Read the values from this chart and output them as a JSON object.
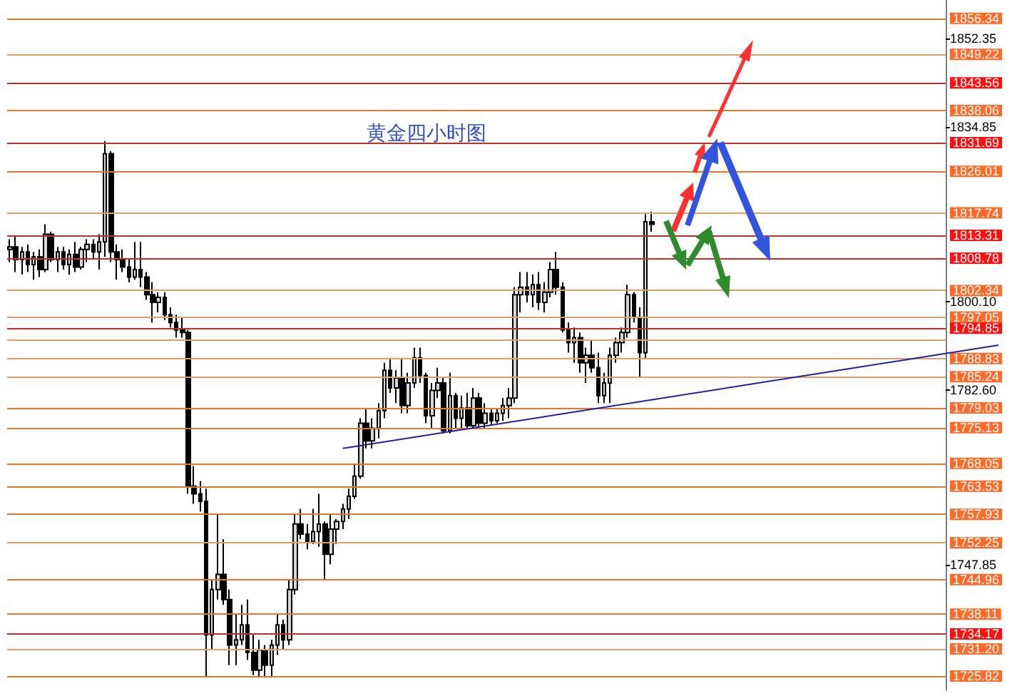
{
  "chart_data": {
    "type": "candlestick",
    "title": "黄金四小时图",
    "categories": [
      null,
      null,
      null,
      null,
      null,
      null,
      null,
      null,
      null,
      null,
      null,
      null,
      null,
      null,
      null,
      null,
      null,
      null,
      null,
      null,
      null,
      null,
      null,
      null,
      null,
      null,
      null,
      null,
      null,
      null,
      null,
      null,
      null,
      null,
      null,
      null,
      null,
      null,
      null,
      null,
      null,
      null,
      null,
      null,
      null,
      null,
      null,
      null,
      null,
      null,
      null,
      null,
      null,
      null,
      null,
      null,
      null,
      null,
      null,
      null,
      null,
      null,
      null,
      null,
      null,
      null,
      null,
      null,
      null,
      null,
      null,
      null,
      null,
      null,
      null,
      null,
      null,
      null,
      null,
      null,
      null,
      null,
      null,
      null,
      null,
      null,
      null,
      null,
      null,
      null,
      null,
      null,
      null,
      null,
      null,
      null,
      null,
      null,
      null,
      null,
      null,
      null,
      null,
      null,
      null,
      null,
      null,
      null,
      null,
      null,
      null,
      null,
      null,
      null,
      null,
      null,
      null,
      null,
      null,
      null,
      null,
      null,
      null,
      null,
      null,
      null,
      null,
      null,
      null,
      null,
      null,
      null,
      null,
      null,
      null,
      null,
      null,
      null,
      null,
      null,
      null,
      null,
      null,
      null,
      null,
      null,
      null,
      null,
      null,
      null,
      null,
      null,
      null,
      null,
      null,
      null,
      null,
      null
    ],
    "ohlc": [
      [
        1810.5,
        1812.5,
        1808,
        1811
      ],
      [
        1811,
        1813,
        1806,
        1808.5
      ],
      [
        1808.5,
        1811,
        1805.5,
        1810
      ],
      [
        1810,
        1811.5,
        1806,
        1807.5
      ],
      [
        1807.5,
        1810,
        1804.5,
        1809
      ],
      [
        1809,
        1810.5,
        1805,
        1806.5
      ],
      [
        1806.5,
        1815.5,
        1806,
        1813.5
      ],
      [
        1813.5,
        1814,
        1808,
        1808.5
      ],
      [
        1808.5,
        1811,
        1806,
        1810
      ],
      [
        1810,
        1811,
        1806.5,
        1807.5
      ],
      [
        1807.5,
        1810.5,
        1805.5,
        1809.5
      ],
      [
        1809.5,
        1812,
        1806,
        1807
      ],
      [
        1807,
        1811,
        1806.5,
        1810.5
      ],
      [
        1810.5,
        1812.5,
        1808,
        1811.5
      ],
      [
        1811.5,
        1812.5,
        1808.5,
        1810
      ],
      [
        1810,
        1813.5,
        1806.5,
        1812
      ],
      [
        1812,
        1832,
        1809,
        1829.5
      ],
      [
        1829.5,
        1830,
        1808,
        1810
      ],
      [
        1810,
        1811.5,
        1804.5,
        1808.5
      ],
      [
        1808.5,
        1810.5,
        1806,
        1807
      ],
      [
        1807,
        1808.5,
        1804,
        1805
      ],
      [
        1805,
        1812,
        1804.5,
        1806.5
      ],
      [
        1806.5,
        1812,
        1803,
        1805
      ],
      [
        1805,
        1806,
        1800.5,
        1801.5
      ],
      [
        1801.5,
        1804,
        1796,
        1800
      ],
      [
        1800,
        1802,
        1798,
        1801
      ],
      [
        1801,
        1802,
        1796.5,
        1797.5
      ],
      [
        1797.5,
        1799,
        1795,
        1796
      ],
      [
        1796,
        1797.5,
        1793,
        1794.5
      ],
      [
        1794.5,
        1797,
        1793,
        1794
      ],
      [
        1794,
        1794.5,
        1762,
        1763.5
      ],
      [
        1763.5,
        1767.5,
        1760,
        1762
      ],
      [
        1762,
        1764.5,
        1758.5,
        1760.5
      ],
      [
        1760.5,
        1763,
        1725.5,
        1734
      ],
      [
        1734,
        1745,
        1731,
        1743
      ],
      [
        1743,
        1758,
        1741,
        1746
      ],
      [
        1746,
        1753,
        1740,
        1741
      ],
      [
        1741,
        1743,
        1728,
        1732
      ],
      [
        1732,
        1738,
        1728,
        1733
      ],
      [
        1733,
        1740,
        1732,
        1736
      ],
      [
        1736,
        1741,
        1729,
        1730.5
      ],
      [
        1730.5,
        1734,
        1726,
        1727
      ],
      [
        1727,
        1733,
        1725.5,
        1731
      ],
      [
        1731,
        1732,
        1725.5,
        1728
      ],
      [
        1728,
        1733,
        1725.5,
        1732
      ],
      [
        1732,
        1738,
        1730,
        1736
      ],
      [
        1736,
        1737,
        1731,
        1733
      ],
      [
        1733,
        1745,
        1732,
        1743
      ],
      [
        1743,
        1758,
        1742,
        1756
      ],
      [
        1756,
        1759,
        1753,
        1754
      ],
      [
        1754,
        1756,
        1751,
        1752.5
      ],
      [
        1752.5,
        1759,
        1752,
        1754.5
      ],
      [
        1754.5,
        1762,
        1751.5,
        1756
      ],
      [
        1756,
        1756.5,
        1745,
        1750
      ],
      [
        1750,
        1758,
        1748,
        1755
      ],
      [
        1755,
        1757,
        1752,
        1756.5
      ],
      [
        1756.5,
        1760,
        1755,
        1759
      ],
      [
        1759,
        1763,
        1757,
        1761.5
      ],
      [
        1761.5,
        1768,
        1761,
        1765.5
      ],
      [
        1765.5,
        1777,
        1765,
        1776
      ],
      [
        1776,
        1779,
        1771,
        1772.5
      ],
      [
        1772.5,
        1777,
        1771,
        1775
      ],
      [
        1775,
        1780,
        1773,
        1778.5
      ],
      [
        1778.5,
        1788,
        1777,
        1786.5
      ],
      [
        1786.5,
        1789,
        1782,
        1783
      ],
      [
        1783,
        1786.5,
        1780,
        1785
      ],
      [
        1785,
        1789,
        1778,
        1779.5
      ],
      [
        1779.5,
        1786,
        1778,
        1784
      ],
      [
        1784,
        1791,
        1783,
        1789
      ],
      [
        1789,
        1791,
        1784,
        1785.5
      ],
      [
        1785.5,
        1786,
        1776,
        1777.5
      ],
      [
        1777.5,
        1784,
        1775,
        1782.5
      ],
      [
        1782.5,
        1787,
        1781,
        1784
      ],
      [
        1784,
        1785,
        1774,
        1774.5
      ],
      [
        1774.5,
        1786,
        1774,
        1781.5
      ],
      [
        1781.5,
        1782,
        1775,
        1777
      ],
      [
        1777,
        1781.5,
        1775,
        1779
      ],
      [
        1779,
        1782,
        1775,
        1775.5
      ],
      [
        1775.5,
        1783,
        1775,
        1781
      ],
      [
        1781,
        1782,
        1775,
        1776
      ],
      [
        1776,
        1780,
        1775,
        1778
      ],
      [
        1778,
        1779,
        1775.5,
        1776.5
      ],
      [
        1776.5,
        1779,
        1776,
        1778
      ],
      [
        1778,
        1781,
        1776.5,
        1779.5
      ],
      [
        1779.5,
        1783,
        1777,
        1781
      ],
      [
        1781,
        1803,
        1780,
        1801.5
      ],
      [
        1801.5,
        1806,
        1798,
        1803
      ],
      [
        1803,
        1806,
        1800,
        1801.5
      ],
      [
        1801.5,
        1805.5,
        1799,
        1803.5
      ],
      [
        1803.5,
        1806,
        1798.5,
        1800
      ],
      [
        1800,
        1804,
        1798,
        1802
      ],
      [
        1802,
        1808,
        1801,
        1806.5
      ],
      [
        1806.5,
        1810,
        1801.5,
        1803
      ],
      [
        1803,
        1804,
        1794,
        1794.5
      ],
      [
        1794.5,
        1796,
        1790,
        1792
      ],
      [
        1792,
        1795,
        1788,
        1793
      ],
      [
        1793,
        1794,
        1786,
        1788
      ],
      [
        1788,
        1791,
        1784,
        1789.5
      ],
      [
        1789.5,
        1792.5,
        1786,
        1787
      ],
      [
        1787,
        1790,
        1780,
        1781.5
      ],
      [
        1781.5,
        1786,
        1780,
        1784
      ],
      [
        1784,
        1791,
        1780,
        1789.5
      ],
      [
        1789.5,
        1793,
        1788,
        1792
      ],
      [
        1792,
        1795,
        1790,
        1794
      ],
      [
        1794,
        1803.5,
        1793,
        1801.5
      ],
      [
        1801.5,
        1802,
        1796,
        1797
      ],
      [
        1797,
        1799,
        1785,
        1790
      ],
      [
        1790,
        1817.5,
        1789,
        1816
      ],
      [
        1816,
        1818,
        1814,
        1815.5
      ],
      null,
      null,
      null,
      null,
      null,
      null,
      null,
      null,
      null,
      null,
      null,
      null,
      null,
      null,
      null,
      null,
      null,
      null,
      null,
      null,
      null,
      null,
      null,
      null,
      null,
      null,
      null,
      null,
      null,
      null,
      null,
      null,
      null,
      null,
      null,
      null,
      null,
      null,
      null,
      null,
      null,
      null,
      null,
      null,
      null,
      null,
      null,
      null,
      null
    ],
    "ylim": [
      1723,
      1860
    ],
    "yticks": [
      1852.35,
      1834.85,
      {
        "value": 1800.1,
        "label": "1800.10"
      },
      {
        "value": 1782.6,
        "label": "1782.60"
      },
      1747.85
    ],
    "tick_labels": "y",
    "ref_lines": [
      {
        "axis": "y",
        "value": 1856.34,
        "label": "1856.34",
        "color": "#e0782c"
      },
      {
        "axis": "y",
        "value": 1849.22,
        "label": "1849.22",
        "color": "#d9a070"
      },
      {
        "axis": "y",
        "value": 1843.56,
        "label": "1843.56",
        "color": "#c0302c"
      },
      {
        "axis": "y",
        "value": 1838.06,
        "label": "1838.06",
        "color": "#e0782c"
      },
      {
        "axis": "y",
        "value": 1831.69,
        "label": "1831.69",
        "color": "#c0302c"
      },
      {
        "axis": "y",
        "value": 1826.01,
        "label": "1826.01",
        "color": "#e0782c"
      },
      {
        "axis": "y",
        "value": 1817.74,
        "label": "1817.74",
        "color": "#d9a070"
      },
      {
        "axis": "y",
        "value": 1813.31,
        "label": "1813.31",
        "color": "#c0302c"
      },
      {
        "axis": "y",
        "value": 1808.78,
        "label": "1808.78",
        "color": "#c0302c"
      },
      {
        "axis": "y",
        "value": 1802.34,
        "label": "1802.34",
        "color": "#d9a070"
      },
      {
        "axis": "y",
        "value": 1797.05,
        "label": "1797.05",
        "color": "#d9a070"
      },
      {
        "axis": "y",
        "value": 1794.85,
        "label": "1794.85",
        "color": "#c0302c"
      },
      {
        "axis": "y",
        "value": 1792.5,
        "color": "#d9a070"
      },
      {
        "axis": "y",
        "value": 1788.83,
        "label": "1788.83",
        "color": "#d9a070"
      },
      {
        "axis": "y",
        "value": 1785.24,
        "label": "1785.24",
        "color": "#d9a070"
      },
      {
        "axis": "y",
        "value": 1779.03,
        "label": "1779.03",
        "color": "#e0782c"
      },
      {
        "axis": "y",
        "value": 1775.13,
        "label": "1775.13",
        "color": "#e0782c"
      },
      {
        "axis": "y",
        "value": 1768.05,
        "label": "1768.05",
        "color": "#e0782c"
      },
      {
        "axis": "y",
        "value": 1763.53,
        "label": "1763.53",
        "color": "#e0782c"
      },
      {
        "axis": "y",
        "value": 1757.93,
        "label": "1757.93",
        "color": "#e0782c"
      },
      {
        "axis": "y",
        "value": 1752.25,
        "label": "1752.25",
        "color": "#d9a070"
      },
      {
        "axis": "y",
        "value": 1744.96,
        "label": "1744.96",
        "color": "#e0782c"
      },
      {
        "axis": "y",
        "value": 1738.11,
        "label": "1738.11",
        "color": "#e0782c"
      },
      {
        "axis": "y",
        "value": 1734.17,
        "label": "1734.17",
        "color": "#c0302c"
      },
      {
        "axis": "y",
        "value": 1731.2,
        "label": "1731.20",
        "color": "#d9a070"
      },
      {
        "axis": "y",
        "value": 1725.82,
        "label": "1725.82",
        "color": "#e0782c"
      }
    ]
  }
}
